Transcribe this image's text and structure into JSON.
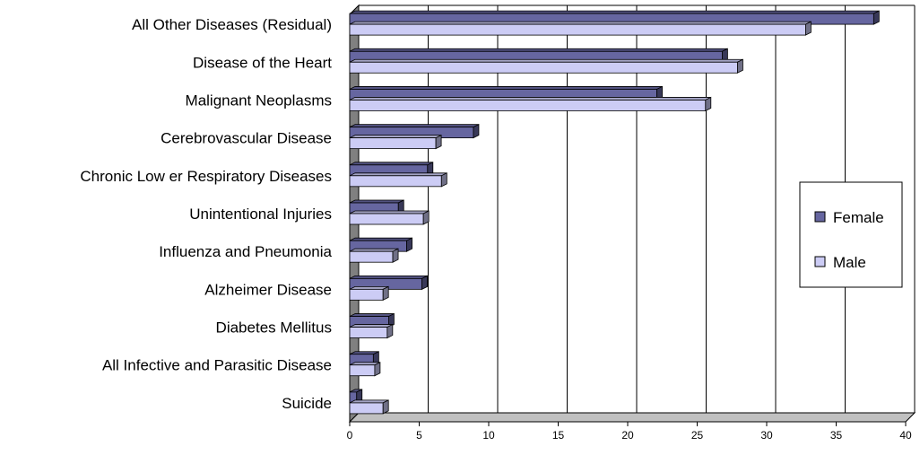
{
  "chart_data": {
    "type": "bar",
    "orientation": "horizontal",
    "title": "",
    "xlabel": "",
    "ylabel": "",
    "categories": [
      "All Other Diseases (Residual)",
      "Disease of the Heart",
      "Malignant Neoplasms",
      "Cerebrovascular Disease",
      "Chronic Low er Respiratory Diseases",
      "Unintentional Injuries",
      "Influenza and Pneumonia",
      "Alzheimer Disease",
      "Diabetes Mellitus",
      "All Infective and Parasitic Disease",
      "Suicide"
    ],
    "series": [
      {
        "name": "Female",
        "color": "#6666a0",
        "values": [
          37.7,
          26.8,
          22.1,
          8.9,
          5.6,
          3.5,
          4.1,
          5.2,
          2.8,
          1.7,
          0.5
        ]
      },
      {
        "name": "Male",
        "color": "#ccccf5",
        "values": [
          32.8,
          27.9,
          25.6,
          6.2,
          6.6,
          5.3,
          3.1,
          2.4,
          2.7,
          1.8,
          2.4
        ]
      }
    ],
    "xticks": [
      "0",
      "5",
      "10",
      "15",
      "20",
      "25",
      "30",
      "35",
      "40"
    ],
    "xlim": [
      0,
      40
    ],
    "grid": true,
    "legend_position": "right"
  }
}
